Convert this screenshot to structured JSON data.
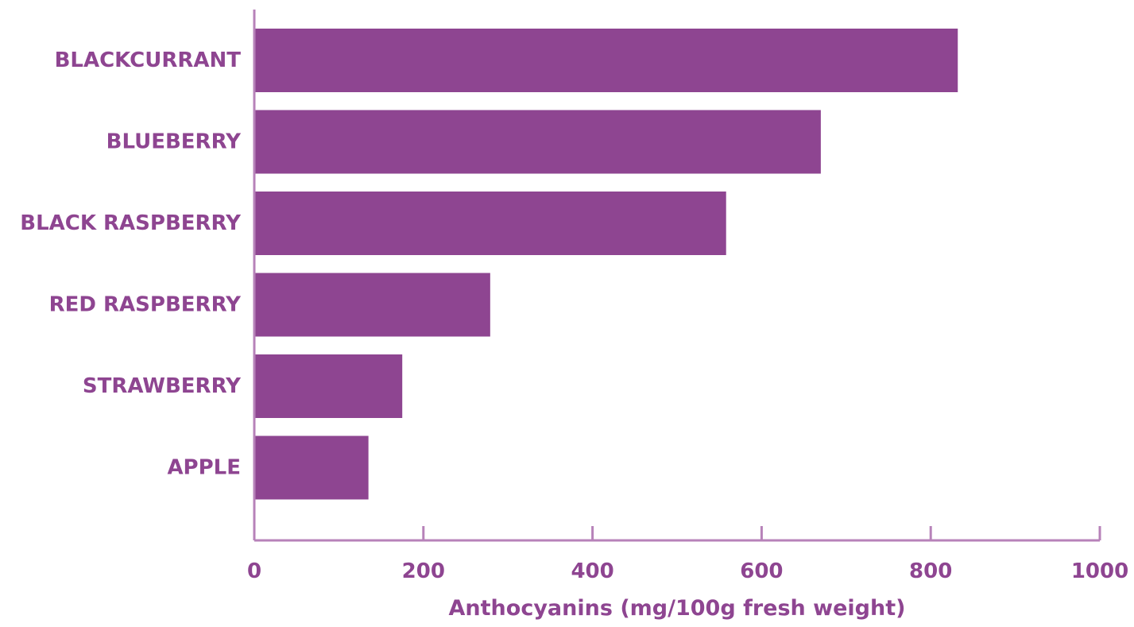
{
  "colors": {
    "bar": "#8e4591",
    "axis": "#b782b9",
    "text": "#8e4591"
  },
  "chart_data": {
    "type": "bar",
    "orientation": "horizontal",
    "categories": [
      "BLACKCURRANT",
      "BLUEBERRY",
      "BLACK RASPBERRY",
      "RED RASPBERRY",
      "STRAWBERRY",
      "APPLE"
    ],
    "values": [
      832,
      670,
      558,
      279,
      175,
      135
    ],
    "xlabel": "Anthocyanins (mg/100g fresh weight)",
    "xlim": [
      0,
      1000
    ],
    "xticks": [
      "0",
      "200",
      "400",
      "600",
      "800",
      "1000"
    ],
    "grid": false,
    "legend": "none"
  }
}
